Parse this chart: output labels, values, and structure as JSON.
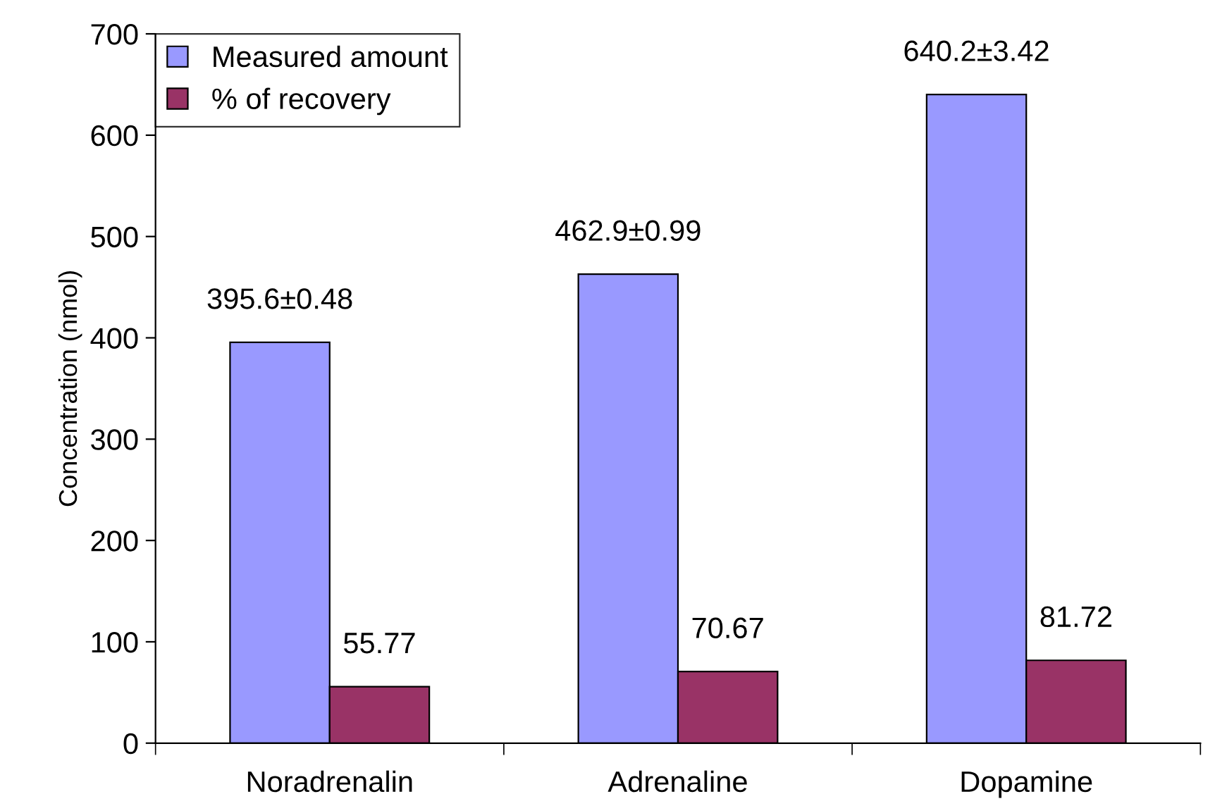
{
  "chart_data": {
    "type": "bar",
    "ylabel": "Concentration (nmol)",
    "categories": [
      "Noradrenalin",
      "Adrenaline",
      "Dopamine"
    ],
    "series": [
      {
        "name": "Measured amount",
        "color": "#9999ff",
        "values": [
          395.6,
          462.9,
          640.2
        ],
        "value_labels": [
          "395.6±0.48",
          "462.9±0.99",
          "640.2±3.42"
        ]
      },
      {
        "name": "% of recovery",
        "color": "#993366",
        "values": [
          55.77,
          70.67,
          81.72
        ],
        "value_labels": [
          "55.77",
          "70.67",
          "81.72"
        ]
      }
    ],
    "ylim": [
      0,
      700
    ],
    "yticks": [
      0,
      100,
      200,
      300,
      400,
      500,
      600,
      700
    ],
    "grid": false,
    "legend": "top left"
  }
}
